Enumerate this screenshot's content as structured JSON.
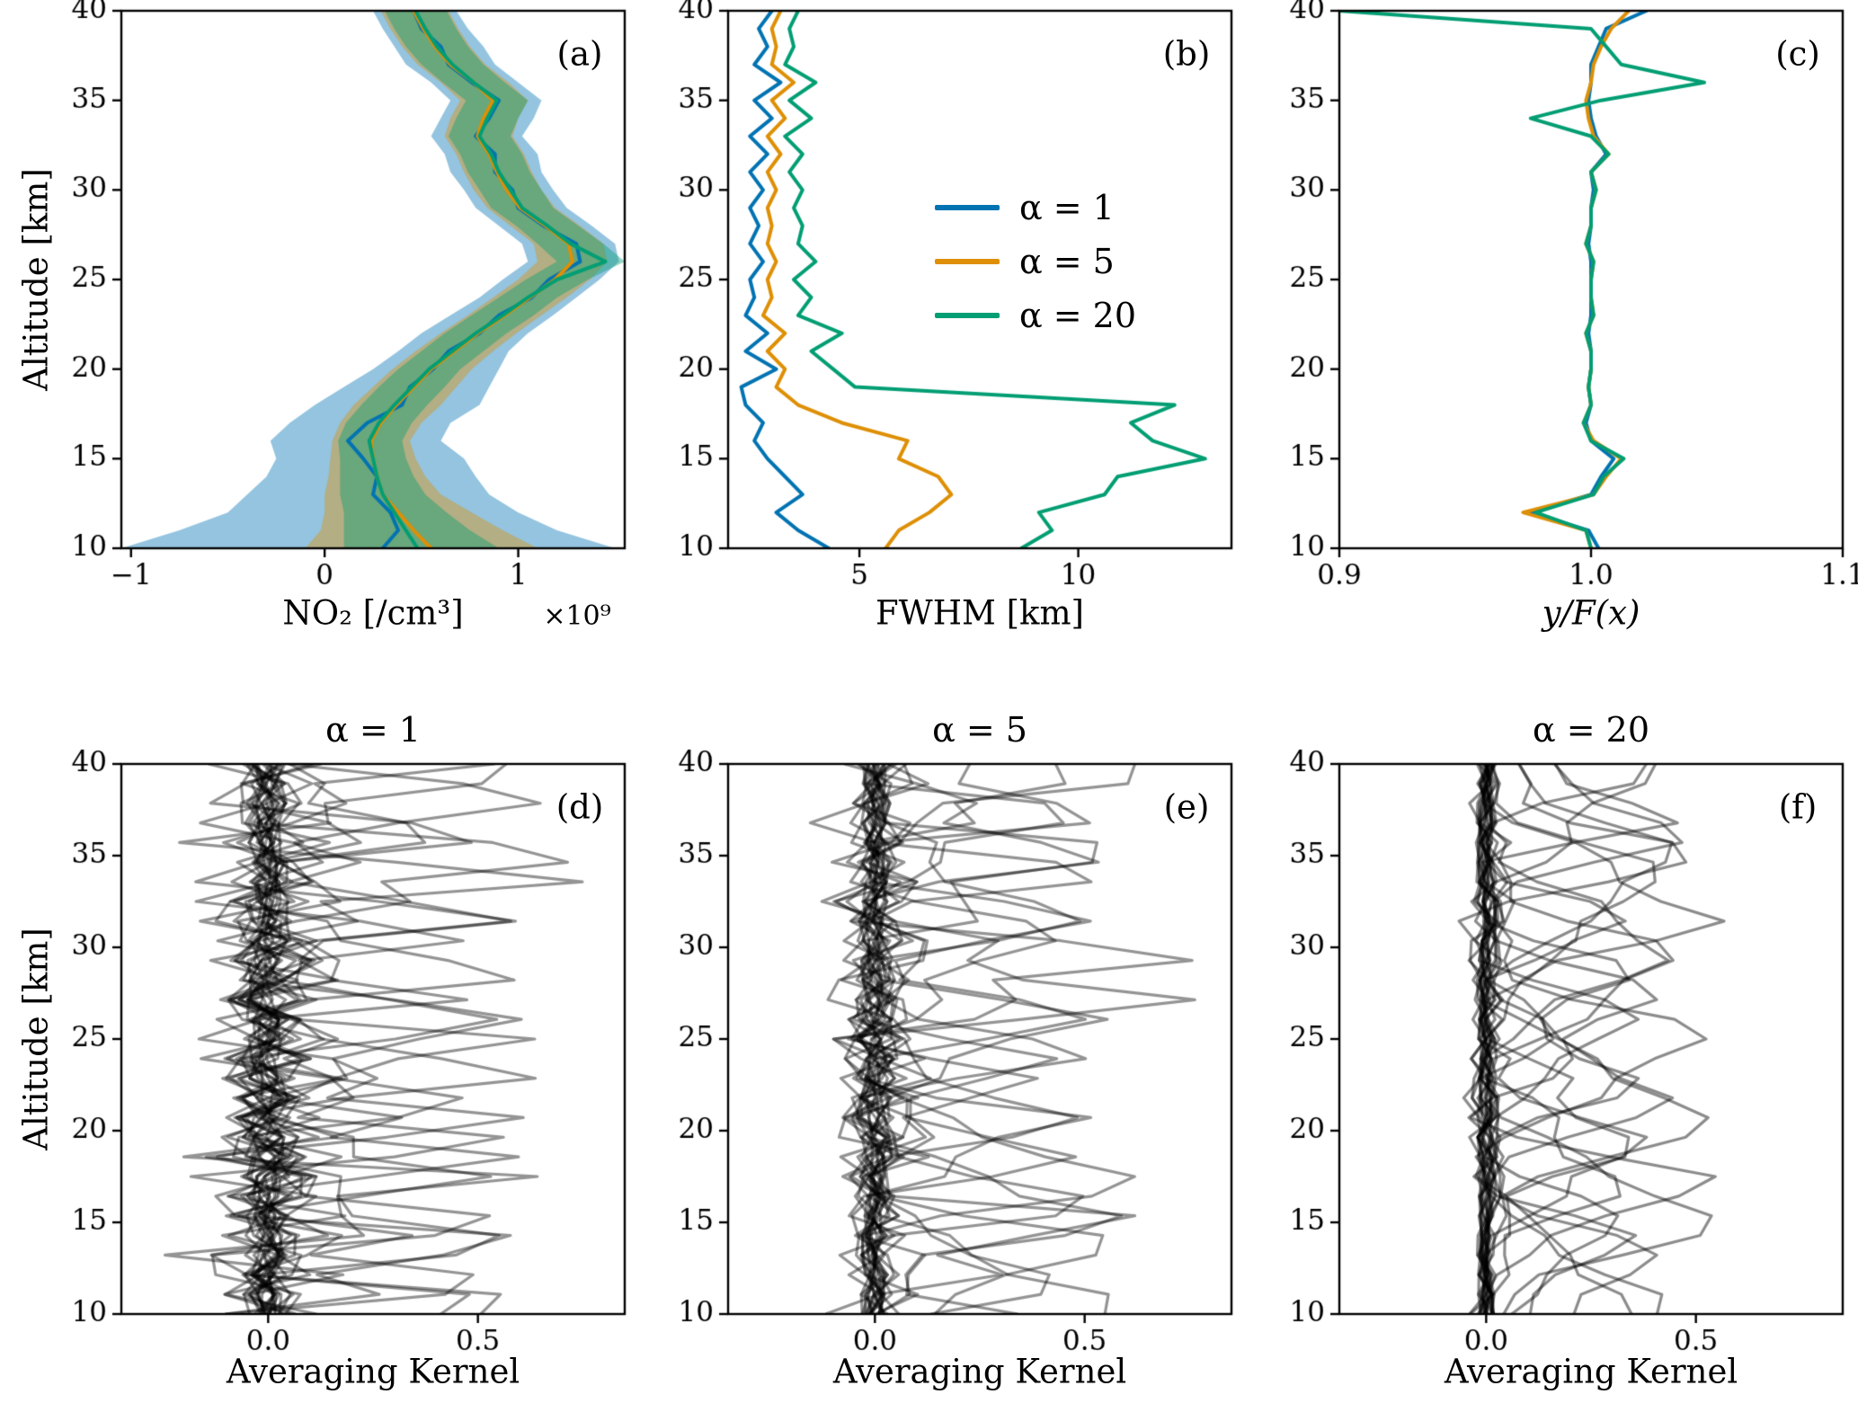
{
  "figure": {
    "ylabel": "Altitude [km]",
    "background": "#ffffff",
    "axis_color": "#000000"
  },
  "chart_data": [
    {
      "id": "a",
      "type": "line",
      "panel_label": "(a)",
      "xlabel": "NO₂ [/cm³]",
      "offset_text": "×10⁹",
      "xlim": [
        -1.05,
        1.55
      ],
      "ylim": [
        10,
        40
      ],
      "xticks": [
        -1,
        0,
        1
      ],
      "xtick_labels": [
        "−1",
        "0",
        "1"
      ],
      "yticks": [
        10,
        15,
        20,
        25,
        30,
        35,
        40
      ],
      "ytick_labels": [
        "10",
        "15",
        "20",
        "25",
        "30",
        "35",
        "40"
      ],
      "altitudes": [
        10,
        11,
        12,
        13,
        14,
        15,
        16,
        17,
        18,
        19,
        20,
        21,
        22,
        23,
        24,
        25,
        26,
        27,
        28,
        29,
        30,
        31,
        32,
        33,
        34,
        35,
        36,
        37,
        38,
        39,
        40
      ],
      "series": [
        {
          "name": "α = 1",
          "color": "#0173b2",
          "values": [
            0.3,
            0.38,
            0.34,
            0.25,
            0.27,
            0.2,
            0.12,
            0.22,
            0.4,
            0.44,
            0.56,
            0.64,
            0.8,
            0.9,
            1.07,
            1.16,
            1.32,
            1.3,
            1.13,
            1.0,
            0.97,
            0.88,
            0.88,
            0.78,
            0.85,
            0.9,
            0.76,
            0.64,
            0.6,
            0.5,
            0.46
          ],
          "band_lower": [
            -1.05,
            -0.75,
            -0.5,
            -0.4,
            -0.3,
            -0.25,
            -0.28,
            -0.18,
            -0.05,
            0.1,
            0.25,
            0.38,
            0.5,
            0.65,
            0.8,
            0.92,
            1.05,
            1.02,
            0.9,
            0.78,
            0.72,
            0.65,
            0.62,
            0.55,
            0.6,
            0.65,
            0.55,
            0.42,
            0.36,
            0.3,
            0.25
          ],
          "band_upper": [
            1.5,
            1.2,
            1.0,
            0.85,
            0.78,
            0.72,
            0.6,
            0.65,
            0.8,
            0.85,
            0.9,
            0.95,
            1.05,
            1.18,
            1.3,
            1.42,
            1.52,
            1.5,
            1.38,
            1.25,
            1.18,
            1.12,
            1.1,
            1.02,
            1.08,
            1.12,
            1.0,
            0.88,
            0.82,
            0.74,
            0.68
          ]
        },
        {
          "name": "α = 5",
          "color": "#de8f05",
          "values": [
            0.55,
            0.46,
            0.38,
            0.3,
            0.27,
            0.25,
            0.24,
            0.29,
            0.37,
            0.46,
            0.55,
            0.67,
            0.79,
            0.93,
            1.06,
            1.19,
            1.28,
            1.26,
            1.14,
            1.01,
            0.94,
            0.89,
            0.85,
            0.79,
            0.82,
            0.87,
            0.77,
            0.65,
            0.57,
            0.51,
            0.46
          ],
          "band_lower": [
            -0.1,
            -0.02,
            0.0,
            0.0,
            0.02,
            0.03,
            0.04,
            0.08,
            0.15,
            0.25,
            0.35,
            0.47,
            0.6,
            0.74,
            0.87,
            1.0,
            1.1,
            1.08,
            0.96,
            0.84,
            0.77,
            0.72,
            0.68,
            0.62,
            0.65,
            0.7,
            0.6,
            0.48,
            0.4,
            0.34,
            0.29
          ],
          "band_upper": [
            1.1,
            0.92,
            0.76,
            0.6,
            0.52,
            0.47,
            0.44,
            0.5,
            0.6,
            0.68,
            0.76,
            0.87,
            0.99,
            1.12,
            1.25,
            1.37,
            1.46,
            1.44,
            1.32,
            1.19,
            1.12,
            1.07,
            1.03,
            0.97,
            1.0,
            1.05,
            0.95,
            0.83,
            0.75,
            0.69,
            0.64
          ]
        },
        {
          "name": "α = 20",
          "color": "#029e73",
          "values": [
            0.48,
            0.42,
            0.36,
            0.3,
            0.27,
            0.25,
            0.23,
            0.28,
            0.36,
            0.45,
            0.54,
            0.66,
            0.78,
            0.92,
            1.05,
            1.2,
            1.45,
            1.27,
            1.15,
            1.02,
            0.96,
            0.9,
            0.86,
            0.8,
            0.84,
            0.89,
            0.77,
            0.66,
            0.58,
            0.52,
            0.47
          ],
          "band_lower": [
            0.1,
            0.1,
            0.1,
            0.08,
            0.08,
            0.08,
            0.07,
            0.11,
            0.19,
            0.28,
            0.38,
            0.5,
            0.62,
            0.76,
            0.9,
            1.04,
            1.2,
            1.1,
            0.99,
            0.86,
            0.8,
            0.74,
            0.7,
            0.64,
            0.68,
            0.73,
            0.61,
            0.5,
            0.42,
            0.36,
            0.31
          ],
          "band_upper": [
            0.9,
            0.75,
            0.63,
            0.52,
            0.46,
            0.42,
            0.4,
            0.45,
            0.53,
            0.62,
            0.7,
            0.82,
            0.94,
            1.08,
            1.2,
            1.36,
            1.55,
            1.44,
            1.31,
            1.18,
            1.12,
            1.06,
            1.02,
            0.96,
            1.0,
            1.05,
            0.93,
            0.82,
            0.74,
            0.68,
            0.63
          ]
        }
      ]
    },
    {
      "id": "b",
      "type": "line",
      "panel_label": "(b)",
      "xlabel": "FWHM [km]",
      "xlim": [
        2.0,
        13.5
      ],
      "ylim": [
        10,
        40
      ],
      "xticks": [
        5,
        10
      ],
      "xtick_labels": [
        "5",
        "10"
      ],
      "yticks": [
        10,
        15,
        20,
        25,
        30,
        35,
        40
      ],
      "ytick_labels": [
        "10",
        "15",
        "20",
        "25",
        "30",
        "35",
        "40"
      ],
      "legend_position": "center right",
      "altitudes": [
        10,
        11,
        12,
        13,
        14,
        15,
        16,
        17,
        18,
        19,
        20,
        21,
        22,
        23,
        24,
        25,
        26,
        27,
        28,
        29,
        30,
        31,
        32,
        33,
        34,
        35,
        36,
        37,
        38,
        39,
        40
      ],
      "series": [
        {
          "name": "α = 1",
          "color": "#0173b2",
          "values": [
            4.3,
            3.6,
            3.1,
            3.7,
            3.3,
            2.9,
            2.6,
            2.8,
            2.4,
            2.3,
            3.1,
            2.4,
            2.9,
            2.4,
            2.6,
            2.5,
            2.8,
            2.5,
            2.7,
            2.5,
            2.8,
            2.5,
            2.9,
            2.5,
            3.0,
            2.6,
            3.2,
            2.6,
            2.9,
            2.7,
            3.0
          ]
        },
        {
          "name": "α = 5",
          "color": "#de8f05",
          "values": [
            5.6,
            5.9,
            6.6,
            7.1,
            6.8,
            5.9,
            6.1,
            4.6,
            3.6,
            3.1,
            3.3,
            2.9,
            3.3,
            2.8,
            3.0,
            2.9,
            3.1,
            2.9,
            3.0,
            2.9,
            3.1,
            2.9,
            3.2,
            2.9,
            3.3,
            3.0,
            3.5,
            3.0,
            3.1,
            3.0,
            3.2
          ]
        },
        {
          "name": "α = 20",
          "color": "#029e73",
          "values": [
            8.7,
            9.4,
            9.1,
            10.6,
            10.9,
            12.9,
            11.7,
            11.2,
            12.2,
            4.9,
            4.4,
            3.9,
            4.6,
            3.6,
            3.9,
            3.5,
            4.0,
            3.6,
            3.7,
            3.5,
            3.7,
            3.4,
            3.7,
            3.3,
            3.9,
            3.4,
            4.0,
            3.3,
            3.5,
            3.4,
            3.6
          ]
        }
      ]
    },
    {
      "id": "c",
      "type": "line",
      "panel_label": "(c)",
      "xlabel": "y/F(x)",
      "xlim": [
        0.9,
        1.1
      ],
      "ylim": [
        10,
        40
      ],
      "xticks": [
        0.9,
        1.0,
        1.1
      ],
      "xtick_labels": [
        "0.9",
        "1.0",
        "1.1"
      ],
      "yticks": [
        10,
        15,
        20,
        25,
        30,
        35,
        40
      ],
      "ytick_labels": [
        "10",
        "15",
        "20",
        "25",
        "30",
        "35",
        "40"
      ],
      "altitudes": [
        10,
        11,
        12,
        13,
        14,
        15,
        16,
        17,
        18,
        19,
        20,
        21,
        22,
        23,
        24,
        25,
        26,
        27,
        28,
        29,
        30,
        31,
        32,
        33,
        34,
        35,
        36,
        37,
        38,
        39,
        40
      ],
      "series": [
        {
          "name": "α = 1",
          "color": "#0173b2",
          "values": [
            1.003,
            0.999,
            0.976,
            1.0,
            1.004,
            1.009,
            1.0,
            0.998,
            1.0,
            0.999,
            1.0,
            1.0,
            0.999,
            1.0,
            1.0,
            1.0,
            1.0,
            0.999,
            1.0,
            1.0,
            1.001,
            1.0,
            1.006,
            1.002,
            1.0,
            0.999,
            1.0,
            1.0,
            1.003,
            1.006,
            1.022
          ]
        },
        {
          "name": "α = 5",
          "color": "#de8f05",
          "values": [
            1.0,
            0.998,
            0.973,
            1.001,
            1.006,
            1.012,
            1.001,
            0.997,
            1.0,
            0.999,
            1.0,
            1.0,
            0.998,
            1.001,
            1.0,
            1.0,
            1.001,
            0.998,
            1.0,
            1.0,
            1.002,
            1.0,
            1.007,
            1.001,
            0.999,
            0.998,
            1.0,
            1.001,
            1.004,
            1.008,
            1.015
          ]
        },
        {
          "name": "α = 20",
          "color": "#029e73",
          "values": [
            1.0,
            0.998,
            0.978,
            1.001,
            1.005,
            1.013,
            1.0,
            0.997,
            1.0,
            0.999,
            1.0,
            1.0,
            0.998,
            1.001,
            1.0,
            1.0,
            1.001,
            0.998,
            1.0,
            1.0,
            1.002,
            1.0,
            1.007,
            1.0,
            0.976,
            1.004,
            1.045,
            1.012,
            1.006,
            1.0,
            0.9
          ]
        }
      ]
    },
    {
      "id": "d",
      "type": "line",
      "panel_label": "(d)",
      "title": "α = 1",
      "xlabel": "Averaging Kernel",
      "xlim": [
        -0.35,
        0.85
      ],
      "ylim": [
        10,
        40
      ],
      "xticks": [
        0,
        0.5
      ],
      "xtick_labels": [
        "0.0",
        "0.5"
      ],
      "yticks": [
        10,
        15,
        20,
        25,
        30,
        35,
        40
      ],
      "ytick_labels": [
        "10",
        "15",
        "20",
        "25",
        "30",
        "35",
        "40"
      ],
      "kernels": {
        "seed": 11,
        "count": 28,
        "amp": 0.5,
        "amp_jitter": 0.16,
        "sigma": 0.95,
        "osc": 0.26,
        "wavelength": 3.2,
        "decay": 6,
        "noise": 0.04,
        "color": "#000000",
        "alpha": 0.42
      }
    },
    {
      "id": "e",
      "type": "line",
      "panel_label": "(e)",
      "title": "α = 5",
      "xlabel": "Averaging Kernel",
      "xlim": [
        -0.35,
        0.85
      ],
      "ylim": [
        10,
        40
      ],
      "xticks": [
        0,
        0.5
      ],
      "xtick_labels": [
        "0.0",
        "0.5"
      ],
      "yticks": [
        10,
        15,
        20,
        25,
        30,
        35,
        40
      ],
      "ytick_labels": [
        "10",
        "15",
        "20",
        "25",
        "30",
        "35",
        "40"
      ],
      "kernels": {
        "seed": 23,
        "count": 28,
        "amp": 0.48,
        "amp_jitter": 0.15,
        "sigma": 1.25,
        "osc": 0.2,
        "wavelength": 3.6,
        "decay": 6,
        "noise": 0.03,
        "color": "#000000",
        "alpha": 0.42
      }
    },
    {
      "id": "f",
      "type": "line",
      "panel_label": "(f)",
      "title": "α = 20",
      "xlabel": "Averaging Kernel",
      "xlim": [
        -0.35,
        0.85
      ],
      "ylim": [
        10,
        40
      ],
      "xticks": [
        0,
        0.5
      ],
      "xtick_labels": [
        "0.0",
        "0.5"
      ],
      "yticks": [
        10,
        15,
        20,
        25,
        30,
        35,
        40
      ],
      "ytick_labels": [
        "10",
        "15",
        "20",
        "25",
        "30",
        "35",
        "40"
      ],
      "kernels": {
        "seed": 37,
        "count": 28,
        "amp": 0.4,
        "amp_jitter": 0.12,
        "sigma": 1.9,
        "osc": 0.11,
        "wavelength": 4.2,
        "decay": 5,
        "noise": 0.02,
        "color": "#000000",
        "alpha": 0.45
      }
    }
  ]
}
